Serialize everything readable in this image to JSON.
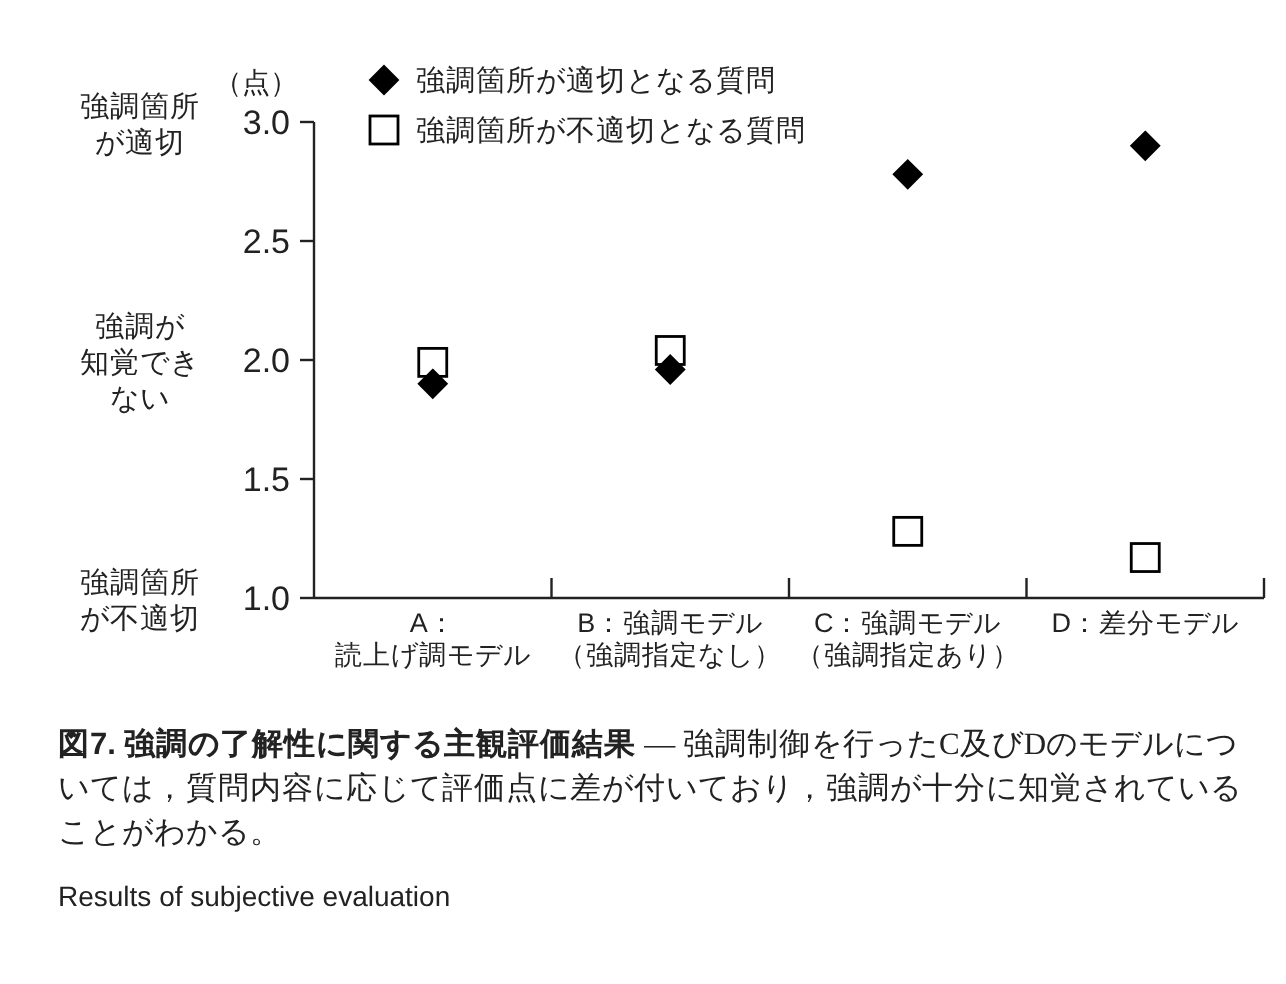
{
  "chart_data": {
    "type": "scatter",
    "title": "図7. 強調の了解性に関する主観評価結果",
    "subtitle": "— 強調制御を行ったC及びDのモデルについては，質問内容に応じて評価点に差が付いており，強調が十分に知覚されていることがわかる。",
    "ylabel": "（点）",
    "categories": [
      "A：読上げ調モデル",
      "B：強調モデル（強調指定なし）",
      "C：強調モデル（強調指定あり）",
      "D：差分モデル"
    ],
    "series": [
      {
        "name": "強調箇所が適切となる質問",
        "color": "#000000",
        "marker": "diamond",
        "values": [
          1.9,
          1.96,
          2.78,
          2.9
        ]
      },
      {
        "name": "強調箇所が不適切となる質問",
        "color": "#000000",
        "marker": "square",
        "values": [
          1.99,
          2.04,
          1.28,
          1.17
        ]
      }
    ],
    "ylim": [
      1.0,
      3.0
    ],
    "yticks": [
      {
        "value": 1.0,
        "label": "1.0"
      },
      1.5,
      {
        "value": 2.0,
        "label": "2.0"
      },
      2.5,
      {
        "value": 3.0,
        "label": "3.0"
      }
    ],
    "legend": "top left",
    "grid": false,
    "annotations": [
      "強調箇所が適切",
      "強調が知覚できない",
      "強調箇所が不適切",
      "Results of subjective evaluation"
    ]
  }
}
